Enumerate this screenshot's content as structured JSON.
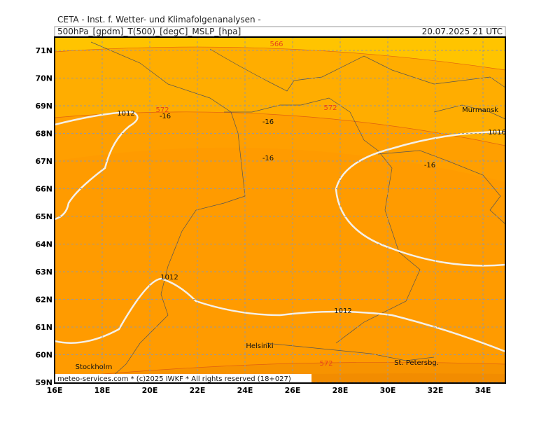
{
  "header": {
    "title": "CETA - Inst. f. Wetter- und Klimafolgenanalysen -",
    "parameters": "500hPa_[gpdm]_T(500)_[degC]_MSLP_[hpa]",
    "valid_time": "20.07.2025 21 UTC"
  },
  "axes": {
    "latitude_labels": [
      "71N",
      "70N",
      "69N",
      "68N",
      "67N",
      "66N",
      "65N",
      "64N",
      "63N",
      "62N",
      "61N",
      "60N",
      "59N"
    ],
    "longitude_labels": [
      "16E",
      "18E",
      "20E",
      "22E",
      "24E",
      "26E",
      "28E",
      "30E",
      "32E",
      "34E"
    ]
  },
  "contour_labels": {
    "height": [
      566,
      572,
      572,
      572
    ],
    "isobars": [
      1012,
      1012,
      1012,
      1016
    ],
    "temperature": [
      -16,
      -16,
      -16,
      -16
    ]
  },
  "places": [
    "Murmansk",
    "Helsinki",
    "Stockholm",
    "St. Petersbg."
  ],
  "footer": "meteo-services.com * (c)2025 IWKF * All rights reserved (18+027)"
}
